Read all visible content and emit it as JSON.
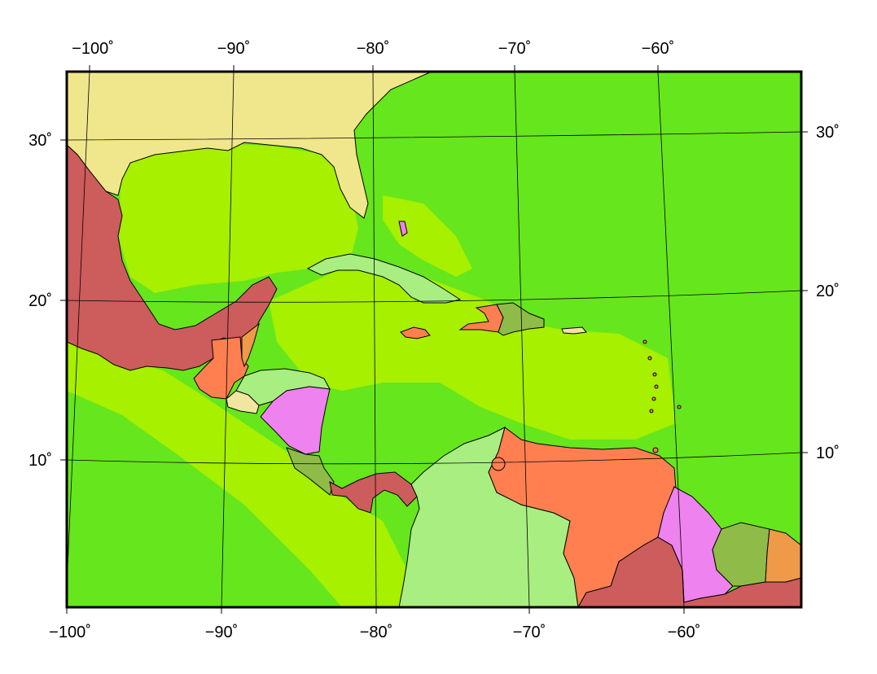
{
  "map": {
    "top_lon_labels": [
      "−100˚",
      "−90˚",
      "−80˚",
      "−70˚",
      "−60˚"
    ],
    "bottom_lon_labels": [
      "−100˚",
      "−90˚",
      "−80˚",
      "−70˚",
      "−60˚"
    ],
    "left_lat_labels": [
      "30˚",
      "20˚",
      "10˚"
    ],
    "right_lat_labels": [
      "30˚",
      "20˚",
      "10˚"
    ],
    "colors": {
      "ocean": "#66e61c",
      "shelf": "#a6f000",
      "usa": "#f0e68c",
      "mexico": "#cd5c5c",
      "guatemala": "#ff7f50",
      "belize": "#ee9a49",
      "honduras": "#a8ee80",
      "el_salvador": "#f0e6a0",
      "nicaragua": "#ee82ee",
      "costa_rica": "#8fbc48",
      "panama": "#cd5c5c",
      "colombia": "#a8ee80",
      "venezuela": "#ff7f50",
      "guyana": "#ee82ee",
      "suriname": "#8fbc48",
      "french_guiana": "#ee9a49",
      "brazil": "#cd5c5c",
      "cuba": "#a8ee80",
      "jamaica": "#ff7f50",
      "haiti": "#ff7f50",
      "dominican_republic": "#8fbc48",
      "puerto_rico": "#f0e6a0",
      "bahamas": "#ee82ee"
    }
  }
}
